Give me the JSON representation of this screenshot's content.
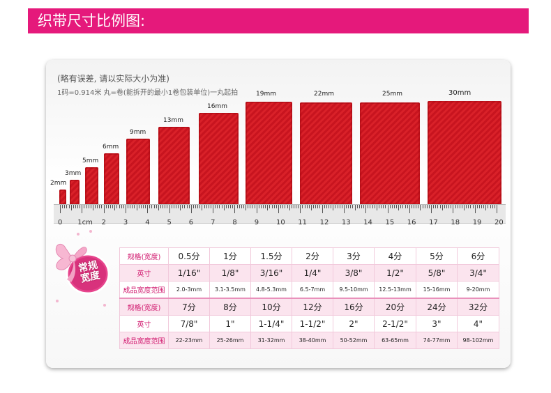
{
  "header": {
    "title": "织带尺寸比例图:"
  },
  "note": "(略有误差, 请以实际大小为准)",
  "unit_note": "1码=0.914米 丸=卷(能拆开的最小1卷包装单位)一丸起拍",
  "ribbons": [
    "2mm",
    "3mm",
    "5mm",
    "6mm",
    "9mm",
    "13mm",
    "16mm",
    "19mm",
    "22mm",
    "25mm",
    "30mm"
  ],
  "ruler": {
    "numbers": [
      "0",
      "1cm",
      "2",
      "3",
      "4",
      "5",
      "6",
      "7",
      "8",
      "9",
      "10",
      "11",
      "12",
      "13",
      "14",
      "15",
      "16",
      "17",
      "18",
      "19",
      "20"
    ]
  },
  "badge": {
    "line1": "常规",
    "line2": "宽度"
  },
  "table": {
    "label_spec": "规格(宽度)",
    "label_inch": "英寸",
    "label_range": "成品宽度范围",
    "block1": {
      "spec": [
        "0.5分",
        "1分",
        "1.5分",
        "2分",
        "3分",
        "4分",
        "5分",
        "6分"
      ],
      "inch": [
        "1/16\"",
        "1/8\"",
        "3/16\"",
        "1/4\"",
        "3/8\"",
        "1/2\"",
        "5/8\"",
        "3/4\""
      ],
      "range": [
        "2.0-3mm",
        "3.1-3.5mm",
        "4.8-5.3mm",
        "6.5-7mm",
        "9.5-10mm",
        "12.5-13mm",
        "15-16mm",
        "9-20mm"
      ]
    },
    "block2": {
      "spec": [
        "7分",
        "8分",
        "10分",
        "12分",
        "16分",
        "20分",
        "24分",
        "32分"
      ],
      "inch": [
        "7/8\"",
        "1\"",
        "1-1/4\"",
        "1-1/2\"",
        "2\"",
        "2-1/2\"",
        "3\"",
        "4\""
      ],
      "range": [
        "22-23mm",
        "25-26mm",
        "31-32mm",
        "38-40mm",
        "50-52mm",
        "63-65mm",
        "74-77mm",
        "98-102mm"
      ]
    }
  }
}
